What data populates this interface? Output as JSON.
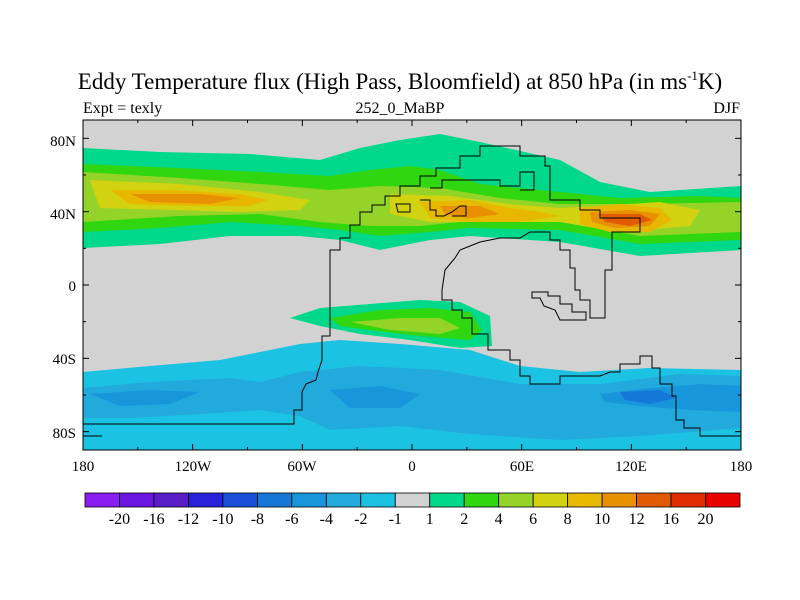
{
  "title": {
    "main": "Eddy Temperature flux (High Pass, Bloomfield) at 850 hPa (in ms",
    "sup": "-1",
    "tail": "K)"
  },
  "subtitle": {
    "left": "Expt = texly",
    "center": "252_0_MaBP",
    "right": "DJF"
  },
  "axes": {
    "lat_labels": [
      "80N",
      "40N",
      "0",
      "40S",
      "80S"
    ],
    "lon_labels": [
      "180",
      "120W",
      "60W",
      "0",
      "60E",
      "120E",
      "180"
    ]
  },
  "colorbar": {
    "labels": [
      "-20",
      "-16",
      "-12",
      "-10",
      "-8",
      "-6",
      "-4",
      "-2",
      "-1",
      "1",
      "2",
      "4",
      "6",
      "8",
      "10",
      "12",
      "16",
      "20"
    ],
    "colors": [
      "#8a1df0",
      "#6a16e0",
      "#5a1ec8",
      "#2a22d8",
      "#1a50d8",
      "#1478d8",
      "#1896dc",
      "#22aadc",
      "#1cc2e2",
      "#d2d2d2",
      "#00d88c",
      "#30d610",
      "#94d428",
      "#d2d210",
      "#e8b800",
      "#e89000",
      "#e05a00",
      "#e02c00",
      "#e80000"
    ]
  },
  "chart_data": {
    "type": "heatmap",
    "title": "Eddy Temperature flux (High Pass, Bloomfield) at 850 hPa (in ms-1K)",
    "subtitle": "252_0_MaBP",
    "experiment": "Expt = texly",
    "season": "DJF",
    "x_range": [
      -180,
      180
    ],
    "y_range": [
      -90,
      90
    ],
    "levels": [
      -20,
      -16,
      -12,
      -10,
      -8,
      -6,
      -4,
      -2,
      -1,
      1,
      2,
      4,
      6,
      8,
      10,
      12,
      16,
      20
    ]
  }
}
